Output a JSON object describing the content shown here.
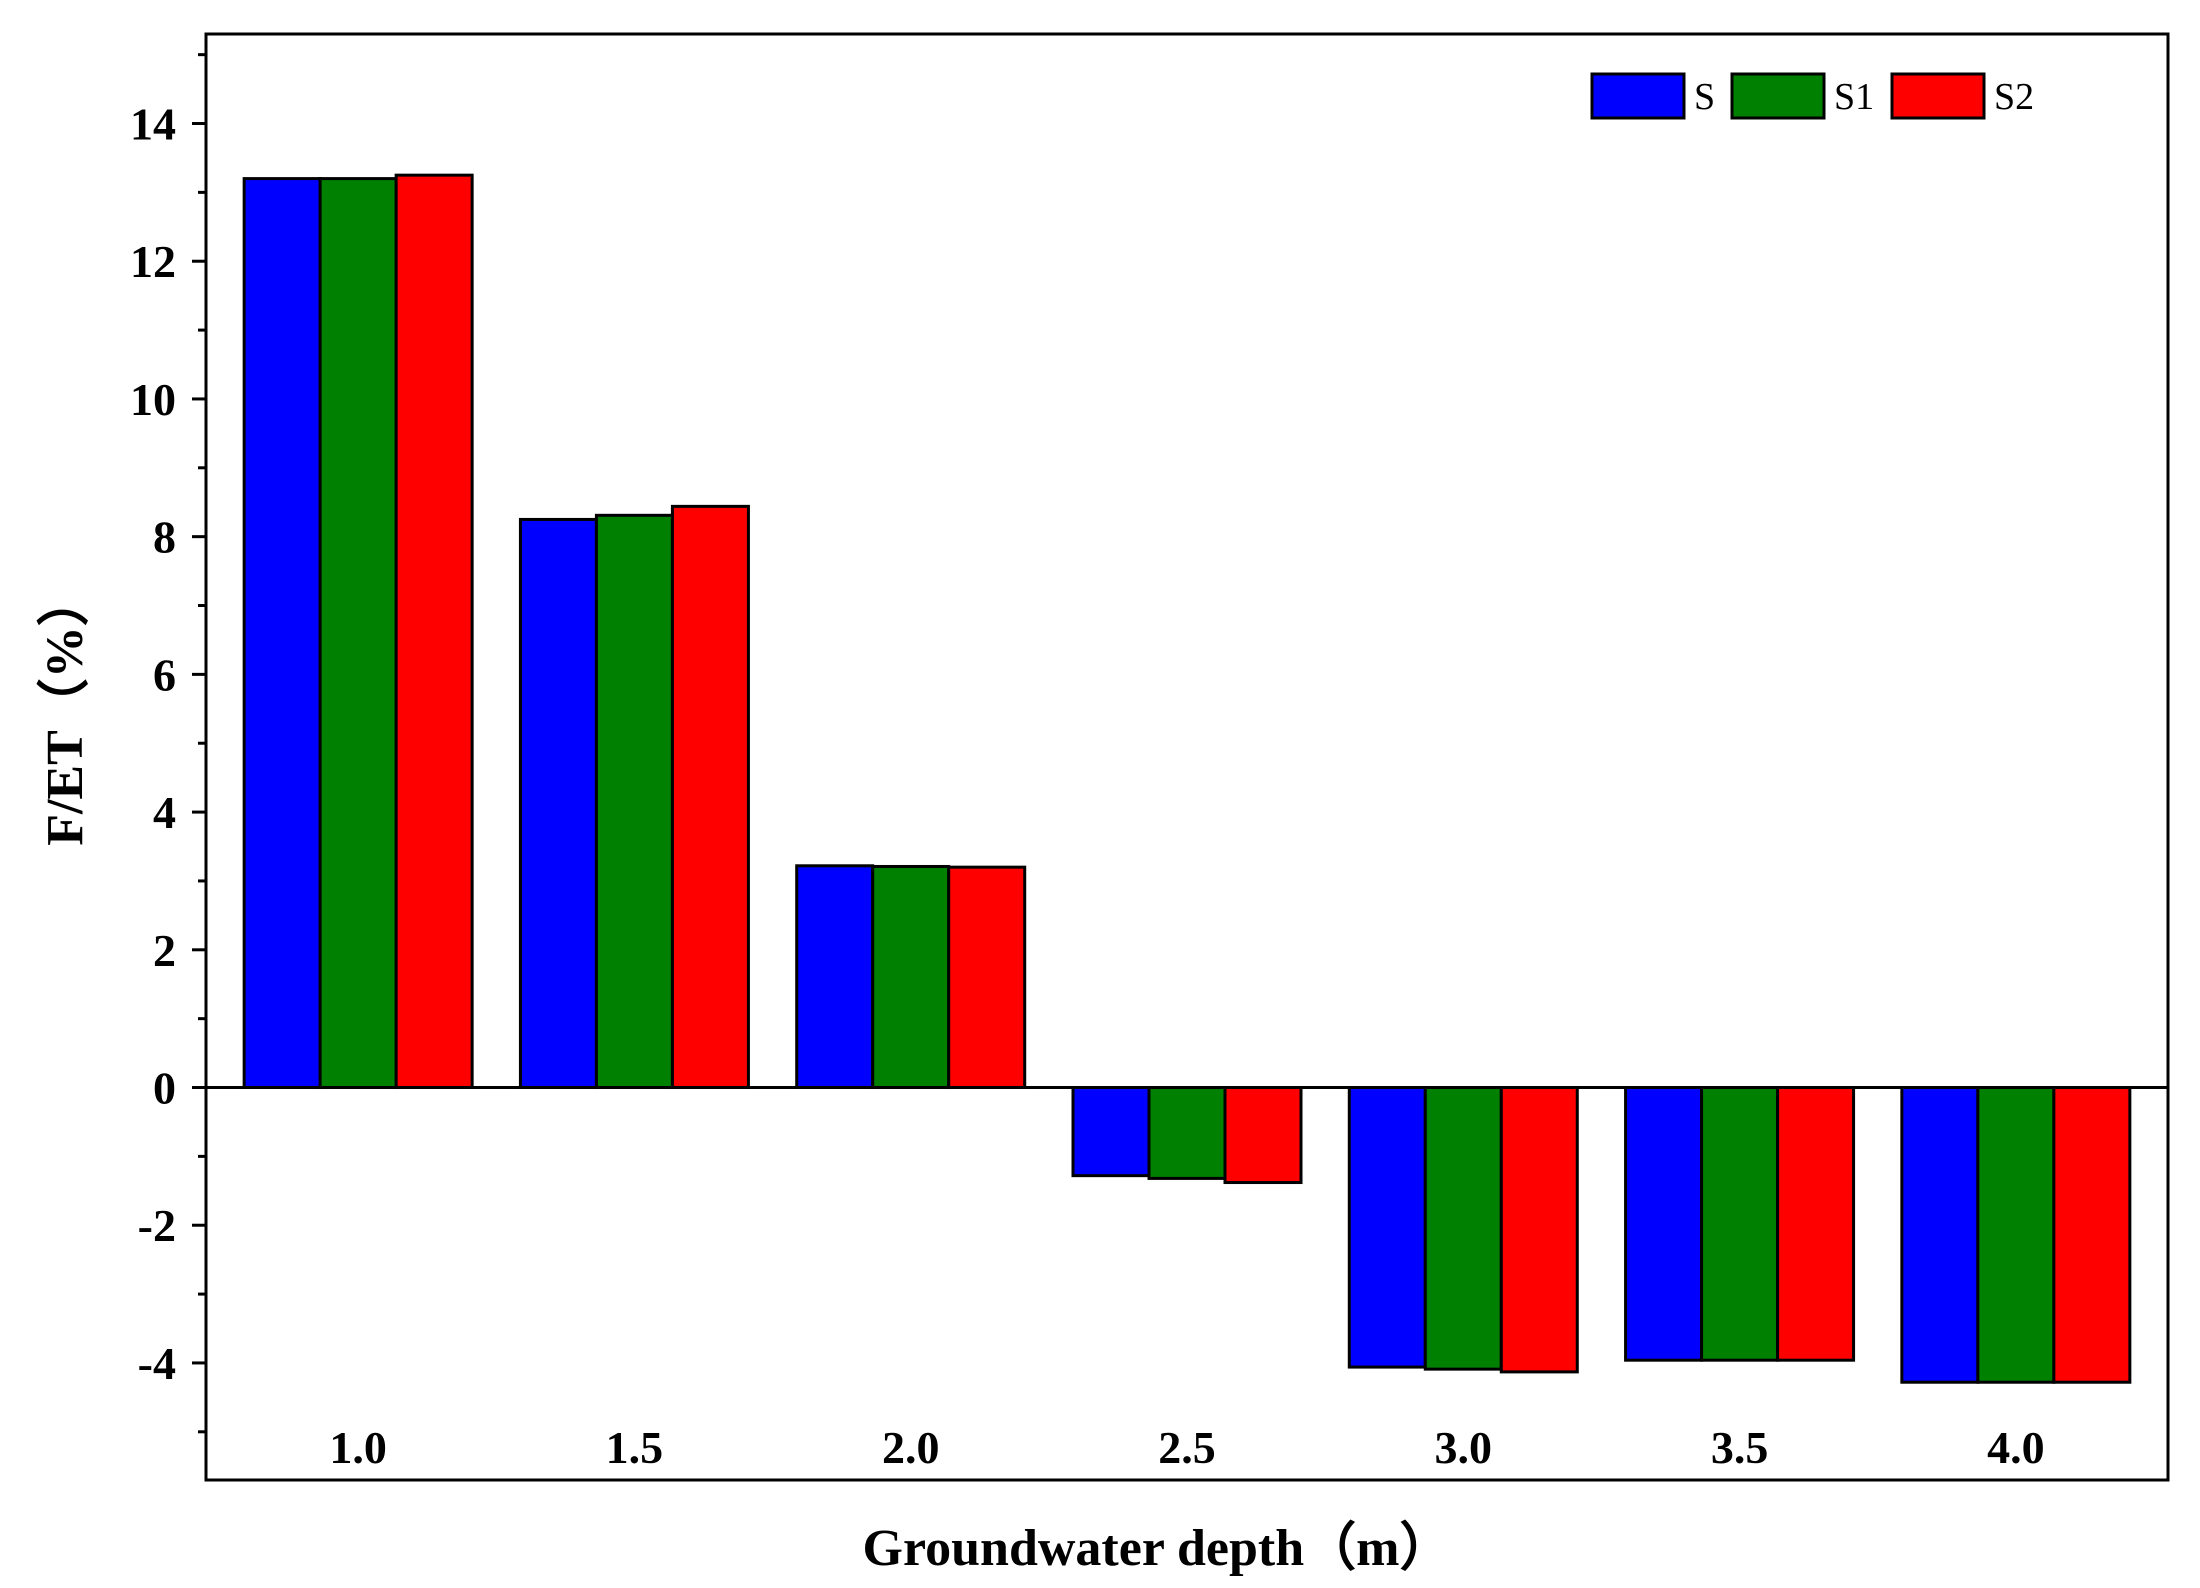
{
  "chart_data": {
    "type": "bar",
    "title": "",
    "xlabel": "Groundwater depth（m）",
    "ylabel": "F/ET（%）",
    "categories": [
      "1.0",
      "1.5",
      "2.0",
      "2.5",
      "3.0",
      "3.5",
      "4.0"
    ],
    "series": [
      {
        "name": "S",
        "color": "#0000FF",
        "values": [
          13.2,
          8.25,
          3.22,
          -1.28,
          -4.06,
          -3.96,
          -4.28
        ]
      },
      {
        "name": "S1",
        "color": "#008000",
        "values": [
          13.2,
          8.31,
          3.21,
          -1.32,
          -4.09,
          -3.96,
          -4.28
        ]
      },
      {
        "name": "S2",
        "color": "#FF0000",
        "values": [
          13.25,
          8.44,
          3.2,
          -1.38,
          -4.13,
          -3.96,
          -4.28
        ]
      }
    ],
    "ylim": [
      -5.7,
      15.3
    ],
    "yticks": [
      -4,
      -2,
      0,
      2,
      4,
      6,
      8,
      10,
      12,
      14
    ],
    "ytick_labels": [
      "-4",
      "-2",
      "0",
      "2",
      "4",
      "6",
      "8",
      "10",
      "12",
      "14"
    ],
    "legend": {
      "position": "top-right",
      "orientation": "horizontal"
    },
    "grid": false
  }
}
